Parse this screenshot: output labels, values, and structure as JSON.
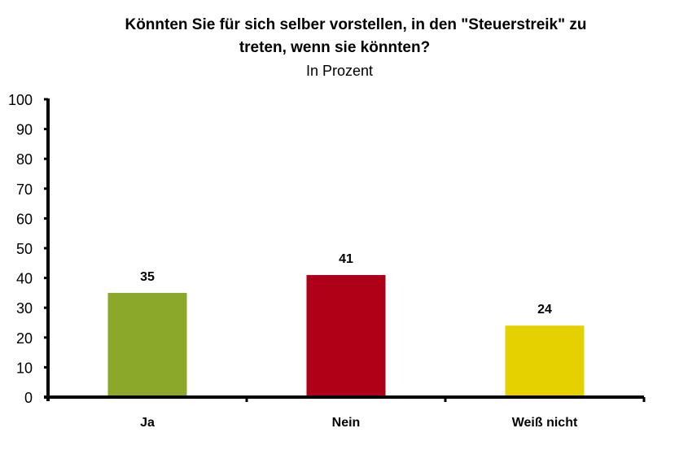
{
  "chart_data": {
    "type": "bar",
    "title_line1": "Könnten Sie für sich selber vorstellen, in den \"Steuerstreik\" zu",
    "title_line2": "treten, wenn sie könnten?",
    "subtitle": "In Prozent",
    "categories": [
      "Ja",
      "Nein",
      "Weiß nicht"
    ],
    "values": [
      35,
      41,
      24
    ],
    "data_labels": [
      "35",
      "41",
      "24"
    ],
    "colors": [
      "#8BA82A",
      "#AD0018",
      "#E6D100"
    ],
    "xlabel": "",
    "ylabel": "",
    "ylim": [
      0,
      100
    ],
    "yticks": [
      0,
      10,
      20,
      30,
      40,
      50,
      60,
      70,
      80,
      90,
      100
    ],
    "grid": false,
    "legend": "none"
  }
}
